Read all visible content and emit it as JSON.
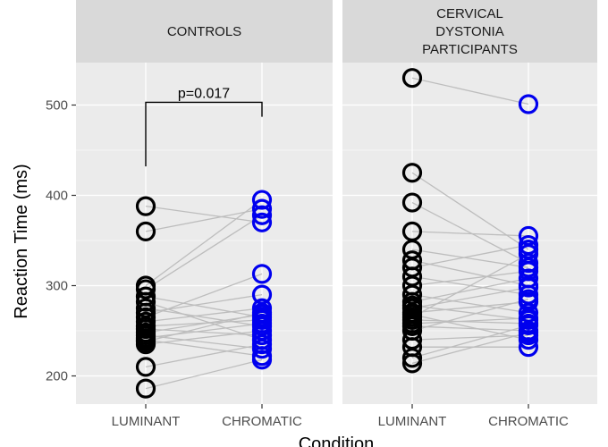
{
  "chart_data": {
    "type": "scatter",
    "subtype": "paired-dot-plot",
    "xlabel": "Condition",
    "ylabel": "Reaction Time (ms)",
    "ylim": [
      175,
      550
    ],
    "yticks": [
      200,
      300,
      400,
      500
    ],
    "categories": [
      "LUMINANT",
      "CHROMATIC"
    ],
    "colors": {
      "LUMINANT": "#000000",
      "CHROMATIC": "#0000ee",
      "pair_line": "#bdbdbd",
      "panel_bg": "#ebebeb",
      "strip_bg": "#d9d9d9",
      "grid": "#ffffff"
    },
    "grid": true,
    "panels": [
      {
        "title": "CONTROLS",
        "title_lines": [
          "CONTROLS"
        ],
        "pairs": [
          [
            388,
            370
          ],
          [
            360,
            385
          ],
          [
            300,
            395
          ],
          [
            296,
            378
          ],
          [
            288,
            265
          ],
          [
            282,
            240
          ],
          [
            275,
            255
          ],
          [
            270,
            290
          ],
          [
            265,
            313
          ],
          [
            260,
            275
          ],
          [
            255,
            262
          ],
          [
            252,
            245
          ],
          [
            248,
            268
          ],
          [
            245,
            230
          ],
          [
            242,
            258
          ],
          [
            240,
            222
          ],
          [
            238,
            270
          ],
          [
            235,
            250
          ],
          [
            210,
            235
          ],
          [
            186,
            218
          ]
        ],
        "annotation": {
          "text": "p=0.017",
          "from": "LUMINANT",
          "to": "CHROMATIC",
          "left_bottom": 432,
          "right_bottom": 487,
          "top": 503
        }
      },
      {
        "title": "CERVICAL DYSTONIA PARTICIPANTS",
        "title_lines": [
          "CERVICAL",
          "DYSTONIA",
          "PARTICIPANTS"
        ],
        "pairs": [
          [
            530,
            501
          ],
          [
            425,
            340
          ],
          [
            392,
            325
          ],
          [
            360,
            355
          ],
          [
            340,
            320
          ],
          [
            328,
            300
          ],
          [
            320,
            345
          ],
          [
            310,
            290
          ],
          [
            300,
            316
          ],
          [
            290,
            270
          ],
          [
            282,
            308
          ],
          [
            278,
            262
          ],
          [
            275,
            298
          ],
          [
            270,
            282
          ],
          [
            268,
            240
          ],
          [
            265,
            335
          ],
          [
            262,
            258
          ],
          [
            258,
            264
          ],
          [
            255,
            250
          ],
          [
            250,
            285
          ],
          [
            240,
            245
          ],
          [
            232,
            232
          ],
          [
            220,
            256
          ],
          [
            214,
            248
          ]
        ],
        "annotation": null
      }
    ]
  }
}
